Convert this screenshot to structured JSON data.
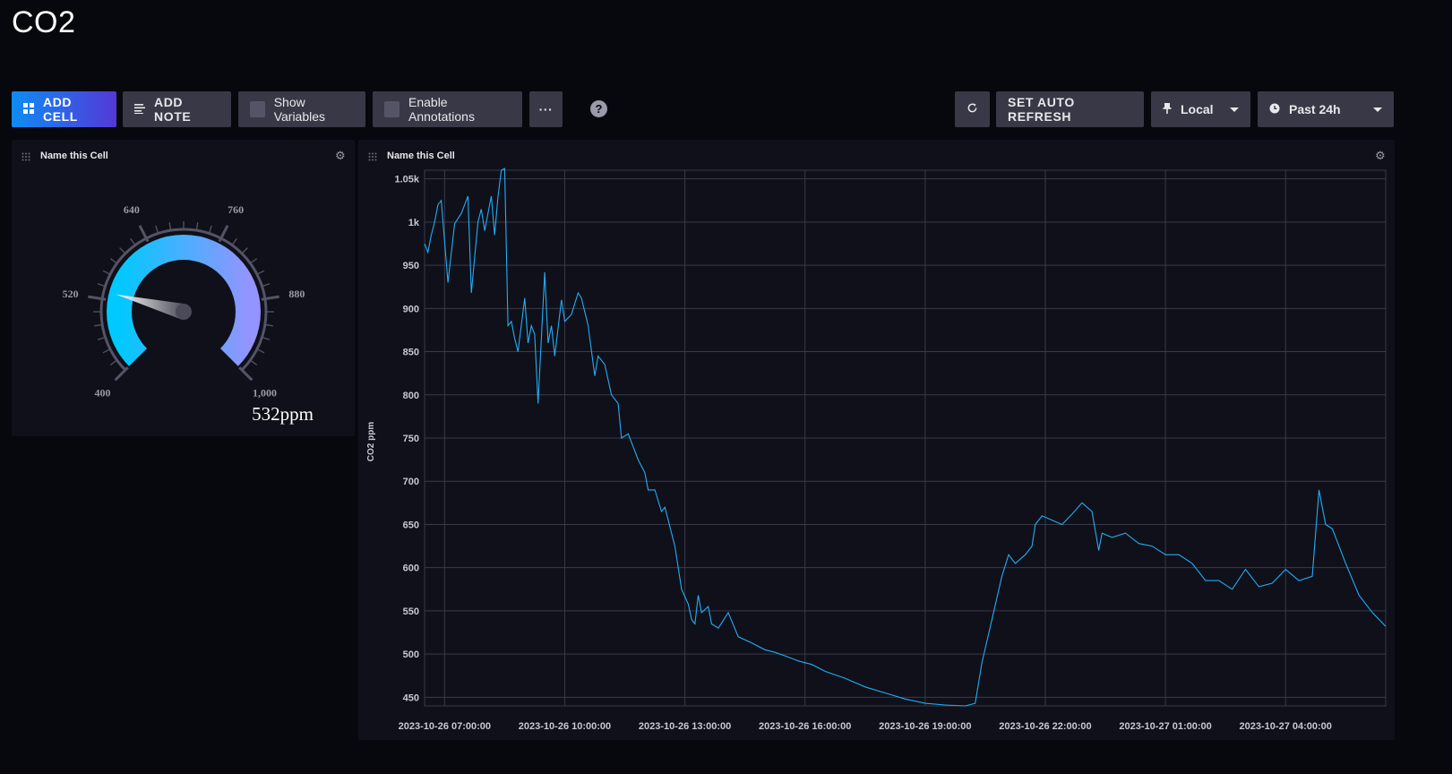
{
  "dashboard": {
    "title": "CO2"
  },
  "toolbar": {
    "add_cell": "ADD CELL",
    "add_note": "ADD NOTE",
    "show_variables": "Show Variables",
    "enable_annotations": "Enable Annotations",
    "more": "···",
    "help": "?",
    "set_auto_refresh": "SET AUTO REFRESH",
    "timezone": "Local",
    "time_range": "Past 24h"
  },
  "gauge_cell": {
    "title": "Name this Cell",
    "value_text": "532ppm",
    "value": 532,
    "min": 400,
    "max": 1000,
    "tick_labels": [
      "400",
      "520",
      "640",
      "760",
      "880",
      "1,000"
    ],
    "colors": {
      "low": "#00c9ff",
      "high": "#9394ff",
      "track": "#545466"
    }
  },
  "graph_cell": {
    "title": "Name this Cell",
    "line_color": "#22adf6"
  },
  "chart_data": {
    "type": "line",
    "title": "",
    "xlabel": "",
    "ylabel": "CO2 ppm",
    "ylim": [
      440,
      1060
    ],
    "yticks": [
      450,
      500,
      550,
      600,
      650,
      700,
      750,
      800,
      850,
      900,
      950,
      1000,
      1050
    ],
    "ytick_labels": [
      "450",
      "500",
      "550",
      "600",
      "650",
      "700",
      "750",
      "800",
      "850",
      "900",
      "950",
      "1k",
      "1.05k"
    ],
    "xlim": [
      "2023-10-26 06:30:00",
      "2023-10-27 06:30:00"
    ],
    "xtick_labels": [
      "2023-10-26 07:00:00",
      "2023-10-26 10:00:00",
      "2023-10-26 13:00:00",
      "2023-10-26 16:00:00",
      "2023-10-26 19:00:00",
      "2023-10-26 22:00:00",
      "2023-10-27 01:00:00",
      "2023-10-27 04:00:00"
    ],
    "grid": true,
    "series": [
      {
        "values": [
          [
            "2023-10-26 06:30:00",
            975
          ],
          [
            "2023-10-26 06:35:00",
            965
          ],
          [
            "2023-10-26 06:40:00",
            985
          ],
          [
            "2023-10-26 06:45:00",
            1000
          ],
          [
            "2023-10-26 06:50:00",
            1020
          ],
          [
            "2023-10-26 06:55:00",
            1025
          ],
          [
            "2023-10-26 07:05:00",
            930
          ],
          [
            "2023-10-26 07:15:00",
            998
          ],
          [
            "2023-10-26 07:25:00",
            1010
          ],
          [
            "2023-10-26 07:35:00",
            1030
          ],
          [
            "2023-10-26 07:40:00",
            918
          ],
          [
            "2023-10-26 07:50:00",
            1000
          ],
          [
            "2023-10-26 07:55:00",
            1015
          ],
          [
            "2023-10-26 08:00:00",
            990
          ],
          [
            "2023-10-26 08:10:00",
            1030
          ],
          [
            "2023-10-26 08:15:00",
            985
          ],
          [
            "2023-10-26 08:20:00",
            1030
          ],
          [
            "2023-10-26 08:25:00",
            1060
          ],
          [
            "2023-10-26 08:30:00",
            1062
          ],
          [
            "2023-10-26 08:35:00",
            880
          ],
          [
            "2023-10-26 08:40:00",
            885
          ],
          [
            "2023-10-26 08:45:00",
            865
          ],
          [
            "2023-10-26 08:50:00",
            850
          ],
          [
            "2023-10-26 09:00:00",
            912
          ],
          [
            "2023-10-26 09:05:00",
            860
          ],
          [
            "2023-10-26 09:10:00",
            880
          ],
          [
            "2023-10-26 09:15:00",
            870
          ],
          [
            "2023-10-26 09:20:00",
            790
          ],
          [
            "2023-10-26 09:30:00",
            942
          ],
          [
            "2023-10-26 09:35:00",
            860
          ],
          [
            "2023-10-26 09:40:00",
            880
          ],
          [
            "2023-10-26 09:45:00",
            845
          ],
          [
            "2023-10-26 09:55:00",
            910
          ],
          [
            "2023-10-26 10:00:00",
            885
          ],
          [
            "2023-10-26 10:10:00",
            893
          ],
          [
            "2023-10-26 10:20:00",
            918
          ],
          [
            "2023-10-26 10:25:00",
            912
          ],
          [
            "2023-10-26 10:35:00",
            880
          ],
          [
            "2023-10-26 10:45:00",
            822
          ],
          [
            "2023-10-26 10:50:00",
            845
          ],
          [
            "2023-10-26 11:00:00",
            835
          ],
          [
            "2023-10-26 11:10:00",
            800
          ],
          [
            "2023-10-26 11:20:00",
            790
          ],
          [
            "2023-10-26 11:25:00",
            750
          ],
          [
            "2023-10-26 11:35:00",
            755
          ],
          [
            "2023-10-26 11:50:00",
            725
          ],
          [
            "2023-10-26 12:00:00",
            710
          ],
          [
            "2023-10-26 12:05:00",
            690
          ],
          [
            "2023-10-26 12:15:00",
            690
          ],
          [
            "2023-10-26 12:25:00",
            665
          ],
          [
            "2023-10-26 12:30:00",
            670
          ],
          [
            "2023-10-26 12:40:00",
            640
          ],
          [
            "2023-10-26 12:45:00",
            625
          ],
          [
            "2023-10-26 12:55:00",
            575
          ],
          [
            "2023-10-26 13:05:00",
            558
          ],
          [
            "2023-10-26 13:10:00",
            540
          ],
          [
            "2023-10-26 13:15:00",
            535
          ],
          [
            "2023-10-26 13:20:00",
            568
          ],
          [
            "2023-10-26 13:25:00",
            548
          ],
          [
            "2023-10-26 13:35:00",
            555
          ],
          [
            "2023-10-26 13:40:00",
            535
          ],
          [
            "2023-10-26 13:50:00",
            530
          ],
          [
            "2023-10-26 14:05:00",
            548
          ],
          [
            "2023-10-26 14:20:00",
            520
          ],
          [
            "2023-10-26 14:40:00",
            513
          ],
          [
            "2023-10-26 15:00:00",
            505
          ],
          [
            "2023-10-26 15:15:00",
            502
          ],
          [
            "2023-10-26 15:30:00",
            498
          ],
          [
            "2023-10-26 15:50:00",
            492
          ],
          [
            "2023-10-26 16:10:00",
            488
          ],
          [
            "2023-10-26 16:30:00",
            480
          ],
          [
            "2023-10-26 17:00:00",
            472
          ],
          [
            "2023-10-26 17:30:00",
            462
          ],
          [
            "2023-10-26 18:00:00",
            455
          ],
          [
            "2023-10-26 18:30:00",
            448
          ],
          [
            "2023-10-26 19:00:00",
            443
          ],
          [
            "2023-10-26 19:30:00",
            441
          ],
          [
            "2023-10-26 20:00:00",
            440
          ],
          [
            "2023-10-26 20:15:00",
            443
          ],
          [
            "2023-10-26 20:25:00",
            490
          ],
          [
            "2023-10-26 20:40:00",
            540
          ],
          [
            "2023-10-26 20:55:00",
            590
          ],
          [
            "2023-10-26 21:05:00",
            615
          ],
          [
            "2023-10-26 21:15:00",
            605
          ],
          [
            "2023-10-26 21:30:00",
            615
          ],
          [
            "2023-10-26 21:40:00",
            625
          ],
          [
            "2023-10-26 21:45:00",
            650
          ],
          [
            "2023-10-26 21:55:00",
            660
          ],
          [
            "2023-10-26 22:10:00",
            655
          ],
          [
            "2023-10-26 22:25:00",
            650
          ],
          [
            "2023-10-26 22:40:00",
            662
          ],
          [
            "2023-10-26 22:55:00",
            675
          ],
          [
            "2023-10-26 23:10:00",
            665
          ],
          [
            "2023-10-26 23:20:00",
            620
          ],
          [
            "2023-10-26 23:25:00",
            640
          ],
          [
            "2023-10-26 23:40:00",
            635
          ],
          [
            "2023-10-27 00:00:00",
            640
          ],
          [
            "2023-10-27 00:20:00",
            628
          ],
          [
            "2023-10-27 00:40:00",
            625
          ],
          [
            "2023-10-27 01:00:00",
            615
          ],
          [
            "2023-10-27 01:20:00",
            615
          ],
          [
            "2023-10-27 01:40:00",
            605
          ],
          [
            "2023-10-27 02:00:00",
            585
          ],
          [
            "2023-10-27 02:20:00",
            585
          ],
          [
            "2023-10-27 02:40:00",
            575
          ],
          [
            "2023-10-27 03:00:00",
            598
          ],
          [
            "2023-10-27 03:20:00",
            578
          ],
          [
            "2023-10-27 03:40:00",
            582
          ],
          [
            "2023-10-27 04:00:00",
            598
          ],
          [
            "2023-10-27 04:20:00",
            585
          ],
          [
            "2023-10-27 04:40:00",
            590
          ],
          [
            "2023-10-27 04:50:00",
            690
          ],
          [
            "2023-10-27 05:00:00",
            650
          ],
          [
            "2023-10-27 05:10:00",
            645
          ],
          [
            "2023-10-27 05:30:00",
            605
          ],
          [
            "2023-10-27 05:50:00",
            568
          ],
          [
            "2023-10-27 06:10:00",
            548
          ],
          [
            "2023-10-27 06:30:00",
            532
          ]
        ]
      }
    ]
  }
}
